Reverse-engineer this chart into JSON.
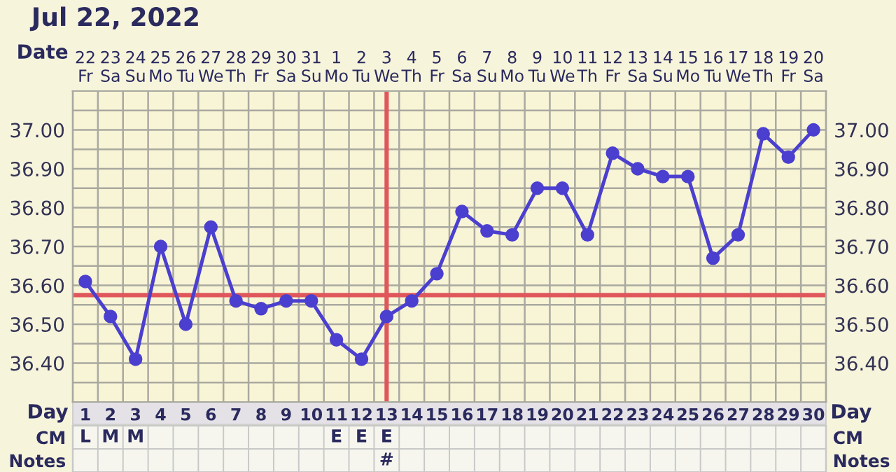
{
  "chart_data": [
    {
      "type": "line",
      "title": "Jul 22, 2022",
      "x": [
        1,
        2,
        3,
        4,
        5,
        6,
        7,
        8,
        9,
        10,
        11,
        12,
        13,
        14,
        15,
        16,
        17,
        18,
        19,
        20,
        21,
        22,
        23,
        24,
        25,
        26,
        27,
        28,
        29,
        30
      ],
      "series": [
        {
          "color": "#4b3fcf",
          "values": [
            36.61,
            36.52,
            36.41,
            36.7,
            36.5,
            36.75,
            36.56,
            36.54,
            36.56,
            36.56,
            36.46,
            36.41,
            36.52,
            36.56,
            36.63,
            36.79,
            36.74,
            36.73,
            36.85,
            36.85,
            36.73,
            36.94,
            36.9,
            36.88,
            36.88,
            36.67,
            36.73,
            36.99,
            36.93,
            37.0
          ]
        }
      ],
      "marker": "circle",
      "line_style": "solid",
      "grid": true,
      "legend": false,
      "xlim": [
        0.5,
        30.5
      ],
      "xticks": [
        1,
        2,
        3,
        4,
        5,
        6,
        7,
        8,
        9,
        10,
        11,
        12,
        13,
        14,
        15,
        16,
        17,
        18,
        19,
        20,
        21,
        22,
        23,
        24,
        25,
        26,
        27,
        28,
        29,
        30
      ],
      "xlabel": "Day",
      "x2lim": [
        "2022-07-21T12:00",
        "2022-08-20T12:00"
      ],
      "x2ticks": [
        {
          "value": "2022-07-22",
          "label": "22\nFr"
        },
        {
          "value": "2022-07-23",
          "label": "23\nSa"
        },
        {
          "value": "2022-07-24",
          "label": "24\nSu"
        },
        {
          "value": "2022-07-25",
          "label": "25\nMo"
        },
        {
          "value": "2022-07-26",
          "label": "26\nTu"
        },
        {
          "value": "2022-07-27",
          "label": "27\nWe"
        },
        {
          "value": "2022-07-28",
          "label": "28\nTh"
        },
        {
          "value": "2022-07-29",
          "label": "29\nFr"
        },
        {
          "value": "2022-07-30",
          "label": "30\nSa"
        },
        {
          "value": "2022-07-31",
          "label": "31\nSu"
        },
        {
          "value": "2022-08-01",
          "label": "1\nMo"
        },
        {
          "value": "2022-08-02",
          "label": "2\nTu"
        },
        {
          "value": "2022-08-03",
          "label": "3\nWe"
        },
        {
          "value": "2022-08-04",
          "label": "4\nTh"
        },
        {
          "value": "2022-08-05",
          "label": "5\nFr"
        },
        {
          "value": "2022-08-06",
          "label": "6\nSa"
        },
        {
          "value": "2022-08-07",
          "label": "7\nSu"
        },
        {
          "value": "2022-08-08",
          "label": "8\nMo"
        },
        {
          "value": "2022-08-09",
          "label": "9\nTu"
        },
        {
          "value": "2022-08-10",
          "label": "10\nWe"
        },
        {
          "value": "2022-08-11",
          "label": "11\nTh"
        },
        {
          "value": "2022-08-12",
          "label": "12\nFr"
        },
        {
          "value": "2022-08-13",
          "label": "13\nSa"
        },
        {
          "value": "2022-08-14",
          "label": "14\nSu"
        },
        {
          "value": "2022-08-15",
          "label": "15\nMo"
        },
        {
          "value": "2022-08-16",
          "label": "16\nTu"
        },
        {
          "value": "2022-08-17",
          "label": "17\nWe"
        },
        {
          "value": "2022-08-18",
          "label": "18\nTh"
        },
        {
          "value": "2022-08-19",
          "label": "19\nFr"
        },
        {
          "value": "2022-08-20",
          "label": "20\nSa"
        }
      ],
      "x2label": "Date",
      "ylim": [
        36.3,
        37.1
      ],
      "yticks": [
        {
          "value": 36.4,
          "label": "36.40"
        },
        {
          "value": 36.5,
          "label": "36.50"
        },
        {
          "value": 36.6,
          "label": "36.60"
        },
        {
          "value": 36.7,
          "label": "36.70"
        },
        {
          "value": 36.8,
          "label": "36.80"
        },
        {
          "value": 36.9,
          "label": "36.90"
        },
        {
          "value": 37.0,
          "label": "37.00"
        }
      ],
      "y2lim": [
        36.3,
        37.1
      ],
      "y2ticks": [
        {
          "value": 36.4,
          "label": "36.40"
        },
        {
          "value": 36.5,
          "label": "36.50"
        },
        {
          "value": 36.6,
          "label": "36.60"
        },
        {
          "value": 36.7,
          "label": "36.70"
        },
        {
          "value": 36.8,
          "label": "36.80"
        },
        {
          "value": 36.9,
          "label": "36.90"
        },
        {
          "value": 37.0,
          "label": "37.00"
        }
      ],
      "ref_lines": [
        {
          "axis": "y",
          "value": 36.575,
          "color": "#e0575b",
          "line_style": "solid"
        },
        {
          "axis": "x",
          "value": 13,
          "color": "#e0575b",
          "line_style": "solid"
        }
      ]
    },
    {
      "type": "heatmap",
      "categories": [
        null,
        null,
        null,
        null,
        null,
        null,
        null,
        null,
        null,
        null,
        null,
        null,
        null,
        null,
        null,
        null,
        null,
        null,
        null,
        null,
        null,
        null,
        null,
        null,
        null,
        null,
        null,
        null,
        null,
        null
      ],
      "y_categories": [
        "CM",
        "Notes"
      ],
      "y2_categories": [
        "CM",
        "Notes"
      ],
      "cells": [
        [
          null,
          null,
          null,
          null,
          null,
          null,
          null,
          null,
          null,
          null,
          null,
          null,
          null,
          null,
          null,
          null,
          null,
          null,
          null,
          null,
          null,
          null,
          null,
          null,
          null,
          null,
          null,
          null,
          null,
          null
        ],
        [
          null,
          null,
          null,
          null,
          null,
          null,
          null,
          null,
          null,
          null,
          null,
          null,
          null,
          null,
          null,
          null,
          null,
          null,
          null,
          null,
          null,
          null,
          null,
          null,
          null,
          null,
          null,
          null,
          null,
          null
        ]
      ],
      "cell_labels": [
        [
          "L",
          "M",
          "M",
          null,
          null,
          null,
          null,
          null,
          null,
          null,
          "E",
          "E",
          "E",
          null,
          null,
          null,
          null,
          null,
          null,
          null,
          null,
          null,
          null,
          null,
          null,
          null,
          null,
          null,
          null,
          null
        ],
        [
          null,
          null,
          null,
          null,
          null,
          null,
          null,
          null,
          null,
          null,
          null,
          null,
          "#",
          null,
          null,
          null,
          null,
          null,
          null,
          null,
          null,
          null,
          null,
          null,
          null,
          null,
          null,
          null,
          null,
          null
        ]
      ]
    }
  ]
}
